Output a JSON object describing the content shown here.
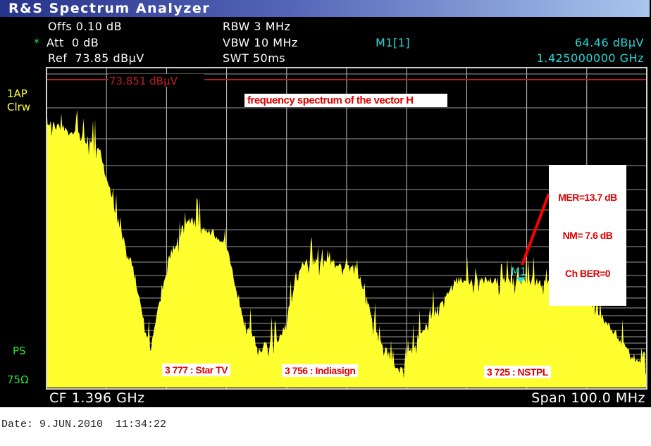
{
  "window": {
    "title": "R&S Spectrum Analyzer"
  },
  "settings": {
    "offset": "Offs 0.10 dB",
    "att_star": "*",
    "att": "Att  0 dB",
    "ref": "Ref  73.85 dBµV",
    "rbw": "RBW 3 MHz",
    "vbw": "VBW 10 MHz",
    "swt": "SWT 50ms"
  },
  "marker_readout": {
    "name": "M1[1]",
    "level": "64.46 dBµV",
    "frequency": "1.425000000 GHz"
  },
  "side_labels": {
    "trace": "1AP",
    "mode": "Clrw",
    "ps": "PS",
    "impedance": "75Ω"
  },
  "footer": {
    "cf": "CF 1.396 GHz",
    "span": "Span 100.0 MHz"
  },
  "date": "Date: 9.JUN.2010  11:34:22",
  "colors": {
    "trace": "#ffff30",
    "ref_line": "#b02020",
    "marker": "#28d8d8",
    "grid": "#c8c8c8",
    "annotation": "#e00000"
  },
  "chart_data": {
    "type": "area",
    "title": "frequency spectrum of the vector H",
    "xlim_mhz": [
      1346,
      1446
    ],
    "y_scale": "linear-voltage",
    "reference_level_dbuv": 73.851,
    "ref_line_label": "73.851 dBµV",
    "marker": {
      "label": "M1",
      "freq_mhz": 1425,
      "level_dbuv": 64.46
    },
    "series": [
      {
        "freq_mhz": [
          1346.0,
          1354.7,
          1357.6,
          1360.6,
          1363.3,
          1366.4,
          1369.7,
          1375.8,
          1378.7,
          1381.4,
          1385.2,
          1388.7,
          1397.5,
          1401.6,
          1404.9,
          1408.7,
          1414.5,
          1434.5,
          1439.2,
          1443.9,
          1446.0
        ],
        "level_dbuv": [
          72.6,
          71.8,
          68.9,
          65.5,
          56.5,
          66.5,
          68.9,
          67.4,
          61.7,
          56.5,
          59.0,
          66.3,
          66.0,
          57.8,
          50.4,
          60.0,
          65.0,
          64.7,
          60.9,
          54.9,
          48.9
        ]
      }
    ],
    "annotations": [
      {
        "text": "3 777 : Star TV"
      },
      {
        "text": "3 756 : Indiasign"
      },
      {
        "text": "3 725 : NSTPL"
      },
      {
        "lines": [
          "MER=13.7 dB",
          "NM= 7.6 dB",
          "Ch BER=0"
        ]
      }
    ]
  }
}
